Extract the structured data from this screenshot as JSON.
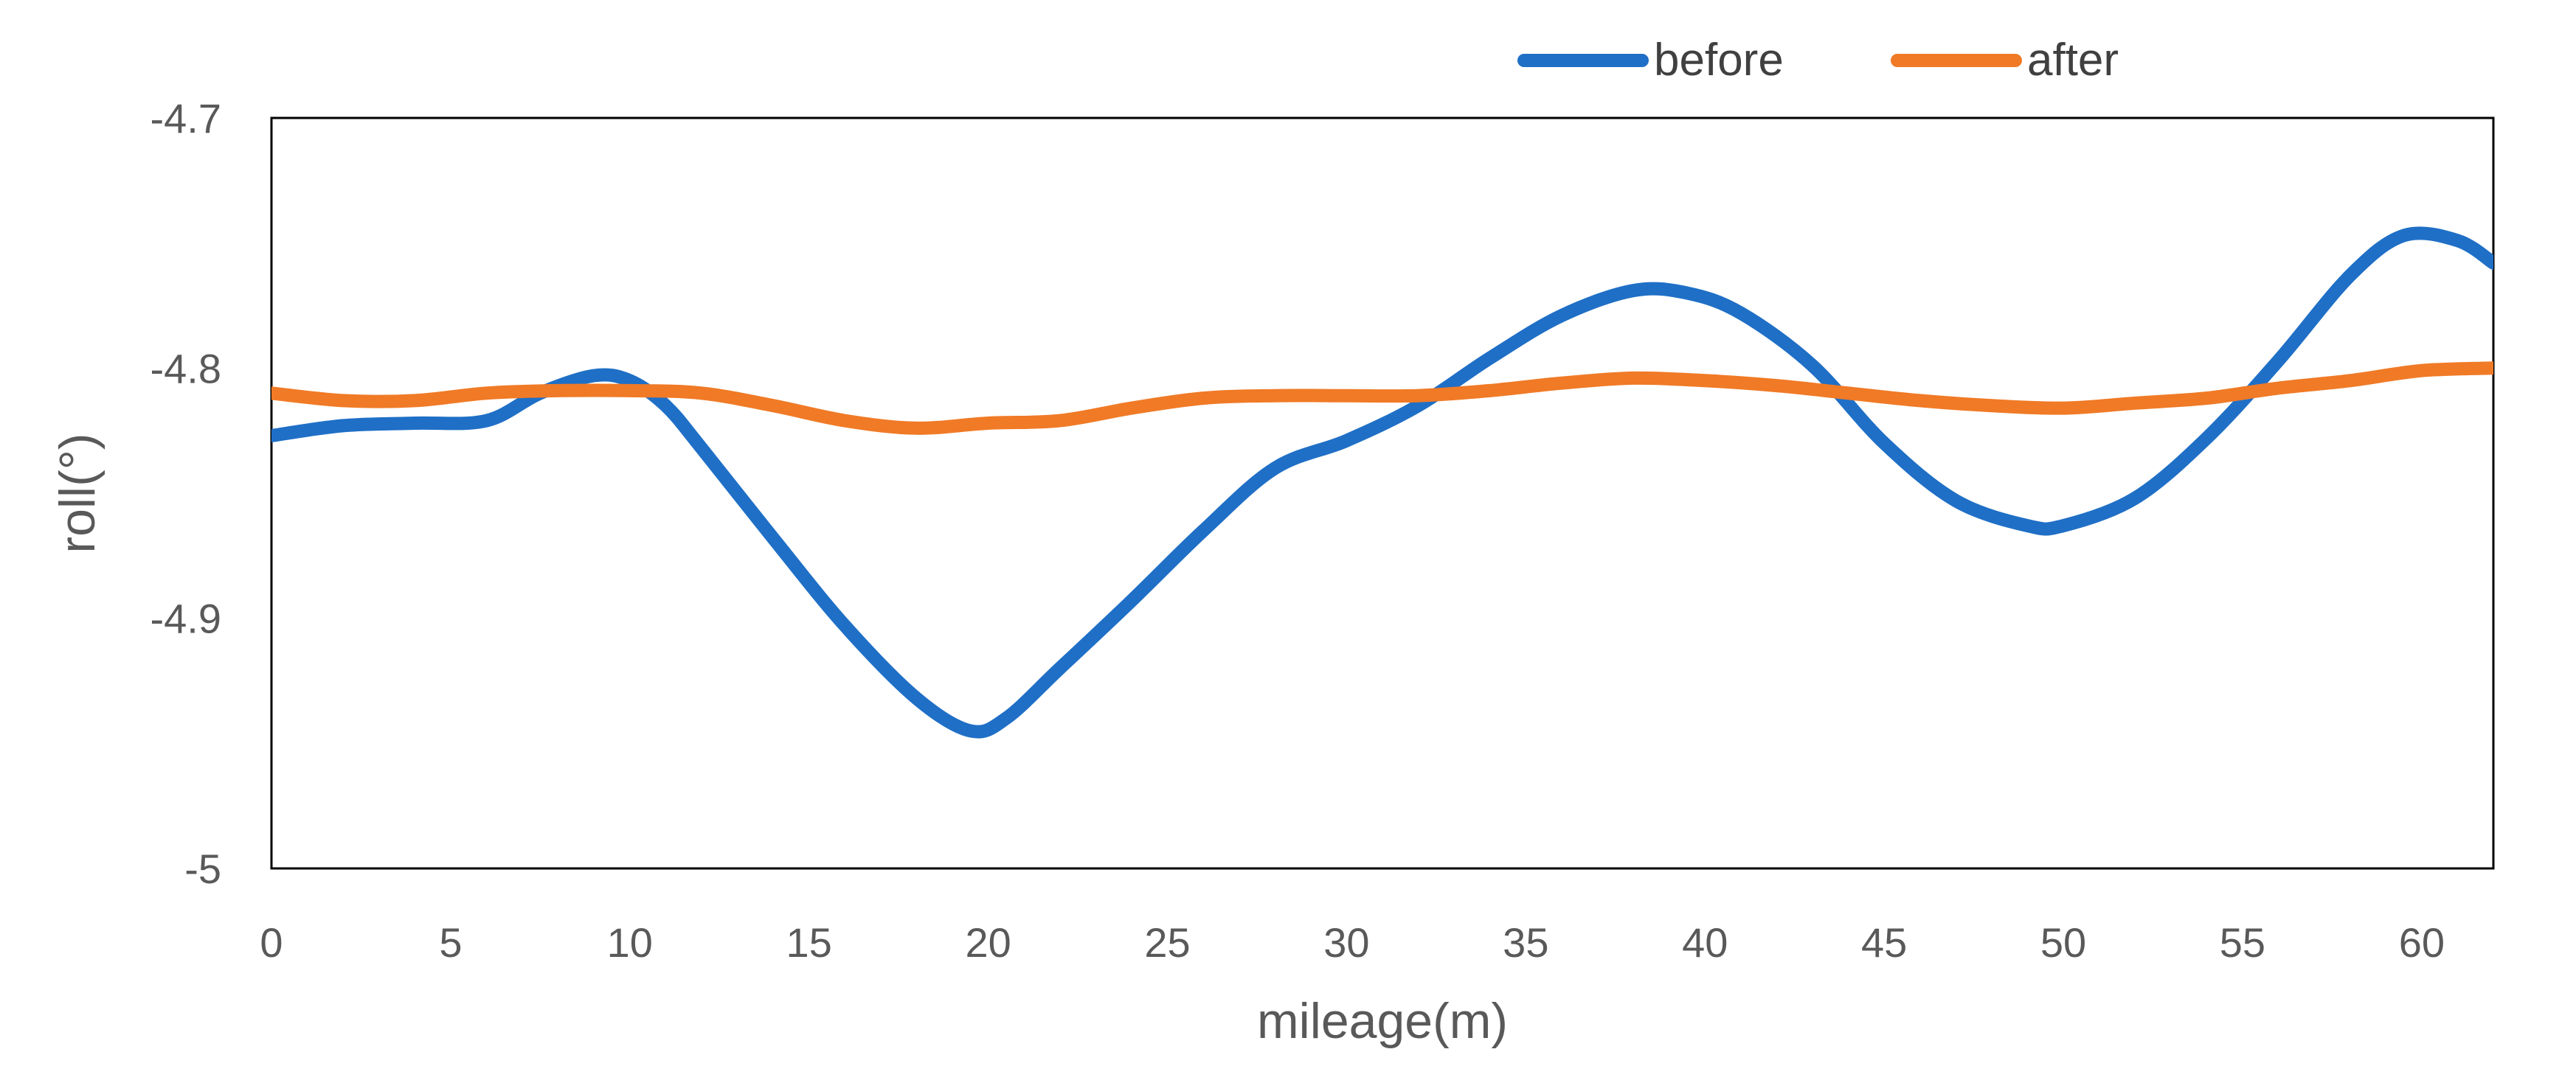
{
  "chart_data": {
    "type": "line",
    "title": "",
    "xlabel": "mileage(m)",
    "ylabel": "roll(°)",
    "xlim": [
      0,
      62
    ],
    "ylim": [
      -5,
      -4.7
    ],
    "x_ticks": [
      0,
      5,
      10,
      15,
      20,
      25,
      30,
      35,
      40,
      45,
      50,
      55,
      60
    ],
    "y_ticks": [
      -5,
      -4.9,
      -4.8,
      -4.7
    ],
    "grid": false,
    "legend_position": "top-center",
    "series": [
      {
        "name": "before",
        "color": "#1F6FC6",
        "points": [
          [
            0,
            -4.827
          ],
          [
            2,
            -4.823
          ],
          [
            4,
            -4.822
          ],
          [
            6,
            -4.821
          ],
          [
            7.5,
            -4.81
          ],
          [
            9,
            -4.803
          ],
          [
            10,
            -4.805
          ],
          [
            11,
            -4.815
          ],
          [
            12,
            -4.832
          ],
          [
            14,
            -4.868
          ],
          [
            16,
            -4.903
          ],
          [
            18,
            -4.932
          ],
          [
            19.5,
            -4.945
          ],
          [
            20.5,
            -4.94
          ],
          [
            22,
            -4.92
          ],
          [
            24,
            -4.893
          ],
          [
            26,
            -4.865
          ],
          [
            28,
            -4.84
          ],
          [
            30,
            -4.829
          ],
          [
            32,
            -4.815
          ],
          [
            34,
            -4.796
          ],
          [
            36,
            -4.779
          ],
          [
            38,
            -4.769
          ],
          [
            39.5,
            -4.77
          ],
          [
            41,
            -4.778
          ],
          [
            43,
            -4.799
          ],
          [
            45,
            -4.83
          ],
          [
            47,
            -4.853
          ],
          [
            49,
            -4.863
          ],
          [
            50,
            -4.863
          ],
          [
            52,
            -4.852
          ],
          [
            54,
            -4.828
          ],
          [
            56,
            -4.797
          ],
          [
            58,
            -4.763
          ],
          [
            59.5,
            -4.747
          ],
          [
            61,
            -4.749
          ],
          [
            62,
            -4.758
          ]
        ]
      },
      {
        "name": "after",
        "color": "#F07A26",
        "points": [
          [
            0,
            -4.81
          ],
          [
            2,
            -4.813
          ],
          [
            4,
            -4.813
          ],
          [
            6,
            -4.81
          ],
          [
            8,
            -4.809
          ],
          [
            10,
            -4.809
          ],
          [
            12,
            -4.81
          ],
          [
            14,
            -4.815
          ],
          [
            16,
            -4.821
          ],
          [
            18,
            -4.824
          ],
          [
            20,
            -4.822
          ],
          [
            22,
            -4.821
          ],
          [
            24,
            -4.816
          ],
          [
            26,
            -4.812
          ],
          [
            28,
            -4.811
          ],
          [
            30,
            -4.811
          ],
          [
            32,
            -4.811
          ],
          [
            34,
            -4.809
          ],
          [
            36,
            -4.806
          ],
          [
            38,
            -4.804
          ],
          [
            40,
            -4.805
          ],
          [
            42,
            -4.807
          ],
          [
            44,
            -4.81
          ],
          [
            46,
            -4.813
          ],
          [
            48,
            -4.815
          ],
          [
            50,
            -4.816
          ],
          [
            52,
            -4.814
          ],
          [
            54,
            -4.812
          ],
          [
            56,
            -4.808
          ],
          [
            58,
            -4.805
          ],
          [
            60,
            -4.801
          ],
          [
            62,
            -4.8
          ]
        ]
      }
    ]
  }
}
